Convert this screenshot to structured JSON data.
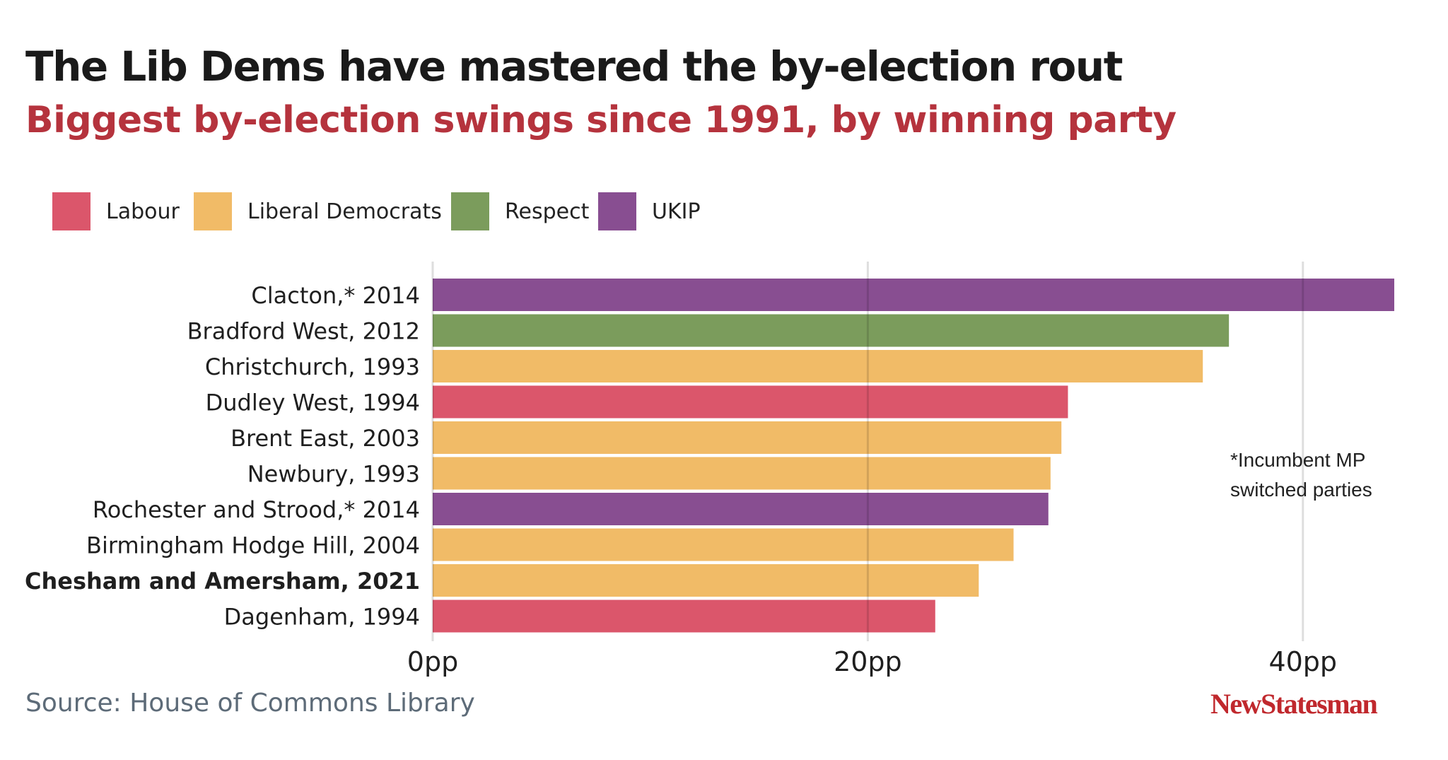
{
  "header": {
    "title": "The Lib Dems have mastered the by-election rout",
    "subtitle": "Biggest by-election swings since 1991, by winning party"
  },
  "legend": [
    {
      "label": "Labour",
      "color": "#db566b"
    },
    {
      "label": "Liberal Democrats",
      "color": "#f1bb67"
    },
    {
      "label": "Respect",
      "color": "#7b9c5c"
    },
    {
      "label": "UKIP",
      "color": "#884e91"
    }
  ],
  "note": {
    "line1": "*Incumbent MP",
    "line2": "switched parties"
  },
  "footer": {
    "source": "Source: House of Commons Library",
    "brand": "NewStatesman"
  },
  "chart_data": {
    "type": "bar",
    "orientation": "horizontal",
    "categories": [
      "Clacton,* 2014",
      "Bradford West, 2012",
      "Christchurch, 1993",
      "Dudley West, 1994",
      "Brent East, 2003",
      "Newbury, 1993",
      "Rochester and Strood,* 2014",
      "Birmingham Hodge Hill, 2004",
      "Chesham and Amersham, 2021",
      "Dagenham, 1994"
    ],
    "values": [
      44.2,
      36.6,
      35.4,
      29.2,
      28.9,
      28.4,
      28.3,
      26.7,
      25.1,
      23.1
    ],
    "party": [
      "UKIP",
      "Respect",
      "Liberal Democrats",
      "Labour",
      "Liberal Democrats",
      "Liberal Democrats",
      "UKIP",
      "Liberal Democrats",
      "Liberal Democrats",
      "Labour"
    ],
    "highlight": [
      "Chesham and Amersham, 2021"
    ],
    "xlim": [
      0,
      44.2
    ],
    "xticks": [
      0,
      20,
      40
    ],
    "xtick_labels": [
      "0pp",
      "20pp",
      "40pp"
    ],
    "grid": "vertical gridlines at ticks"
  }
}
